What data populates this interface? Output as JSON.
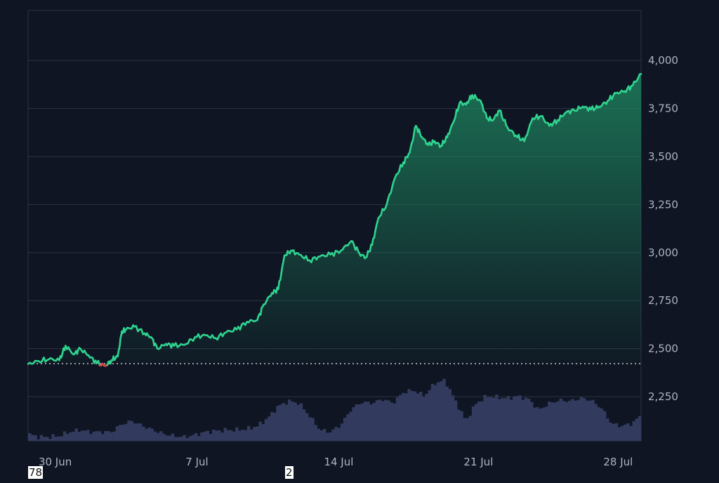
{
  "chart_data": {
    "type": "area",
    "y_ticks": [
      2250,
      2500,
      2750,
      3000,
      3250,
      3500,
      3750,
      4000
    ],
    "y_tick_labels": [
      "2,250",
      "2,500",
      "2,750",
      "3,000",
      "3,250",
      "3,500",
      "3,750",
      "4,000"
    ],
    "ylim": [
      2020,
      4260
    ],
    "x_ticks": [
      {
        "label": "30 Jun",
        "x": 1.3
      },
      {
        "label": "7 Jul",
        "x": 8.1
      },
      {
        "label": "14 Jul",
        "x": 14.9
      },
      {
        "label": "21 Jul",
        "x": 21.6
      },
      {
        "label": "28 Jul",
        "x": 28.3
      }
    ],
    "xlim": [
      0,
      29.4
    ],
    "baseline": 2422,
    "grid": true,
    "series": [
      {
        "type": "line",
        "colors": {
          "above_baseline": "#2fd38f",
          "below_baseline": "#e04a4a",
          "fill": "#1f8a62"
        },
        "x": [
          0,
          0.5,
          1,
          1.5,
          1.8,
          2.2,
          2.5,
          2.9,
          3.3,
          3.7,
          4.0,
          4.3,
          4.5,
          4.7,
          5.1,
          5.6,
          5.9,
          6.2,
          6.6,
          7.0,
          7.5,
          8.0,
          8.5,
          9.0,
          9.5,
          10.0,
          10.5,
          11.0,
          11.3,
          11.7,
          12.0,
          12.3,
          12.6,
          13.0,
          13.5,
          14.0,
          14.5,
          15.0,
          15.5,
          15.9,
          16.2,
          16.5,
          16.8,
          17.2,
          17.6,
          18.0,
          18.3,
          18.6,
          18.9,
          19.2,
          19.5,
          19.8,
          20.1,
          20.4,
          20.7,
          21.0,
          21.3,
          21.7,
          22.0,
          22.3,
          22.6,
          23.0,
          23.4,
          23.8,
          24.2,
          24.6,
          25.0,
          25.4,
          25.8,
          26.2,
          26.6,
          27.0,
          27.4,
          27.8,
          28.2,
          28.6,
          29.0,
          29.4
        ],
        "y": [
          2420,
          2435,
          2445,
          2440,
          2515,
          2470,
          2500,
          2465,
          2425,
          2410,
          2440,
          2460,
          2590,
          2600,
          2615,
          2580,
          2560,
          2500,
          2525,
          2515,
          2520,
          2560,
          2570,
          2555,
          2585,
          2600,
          2640,
          2650,
          2730,
          2790,
          2810,
          2985,
          3010,
          2990,
          2960,
          2980,
          2990,
          3010,
          3060,
          2995,
          2975,
          3040,
          3180,
          3250,
          3390,
          3470,
          3520,
          3660,
          3600,
          3560,
          3580,
          3555,
          3600,
          3680,
          3780,
          3770,
          3820,
          3790,
          3700,
          3690,
          3740,
          3650,
          3610,
          3580,
          3700,
          3710,
          3660,
          3690,
          3730,
          3740,
          3760,
          3745,
          3760,
          3790,
          3830,
          3840,
          3870,
          3930
        ]
      },
      {
        "type": "volume",
        "x": [
          0,
          0.5,
          1,
          1.5,
          2,
          2.5,
          3,
          3.5,
          4,
          4.5,
          5,
          5.5,
          6,
          6.5,
          7,
          7.5,
          8,
          8.5,
          9,
          9.5,
          10,
          10.5,
          11,
          11.5,
          12,
          12.5,
          13,
          13.5,
          14,
          14.5,
          15,
          15.5,
          16,
          16.5,
          17,
          17.5,
          18,
          18.5,
          19,
          19.5,
          20,
          20.5,
          21,
          21.5,
          22,
          22.5,
          23,
          23.5,
          24,
          24.5,
          25,
          25.5,
          26,
          26.5,
          27,
          27.5,
          28,
          28.5,
          29,
          29.4
        ],
        "values": [
          7,
          4,
          4,
          5,
          9,
          11,
          9,
          9,
          9,
          17,
          20,
          15,
          11,
          7,
          5,
          4,
          6,
          9,
          10,
          11,
          11,
          12,
          15,
          23,
          35,
          40,
          38,
          25,
          11,
          9,
          16,
          32,
          39,
          38,
          42,
          38,
          49,
          51,
          45,
          58,
          61,
          40,
          20,
          38,
          45,
          44,
          43,
          45,
          42,
          31,
          38,
          41,
          40,
          43,
          41,
          33,
          17,
          15,
          18,
          26
        ]
      }
    ]
  },
  "footer": {
    "left_number": "78",
    "middle_number": "2"
  }
}
